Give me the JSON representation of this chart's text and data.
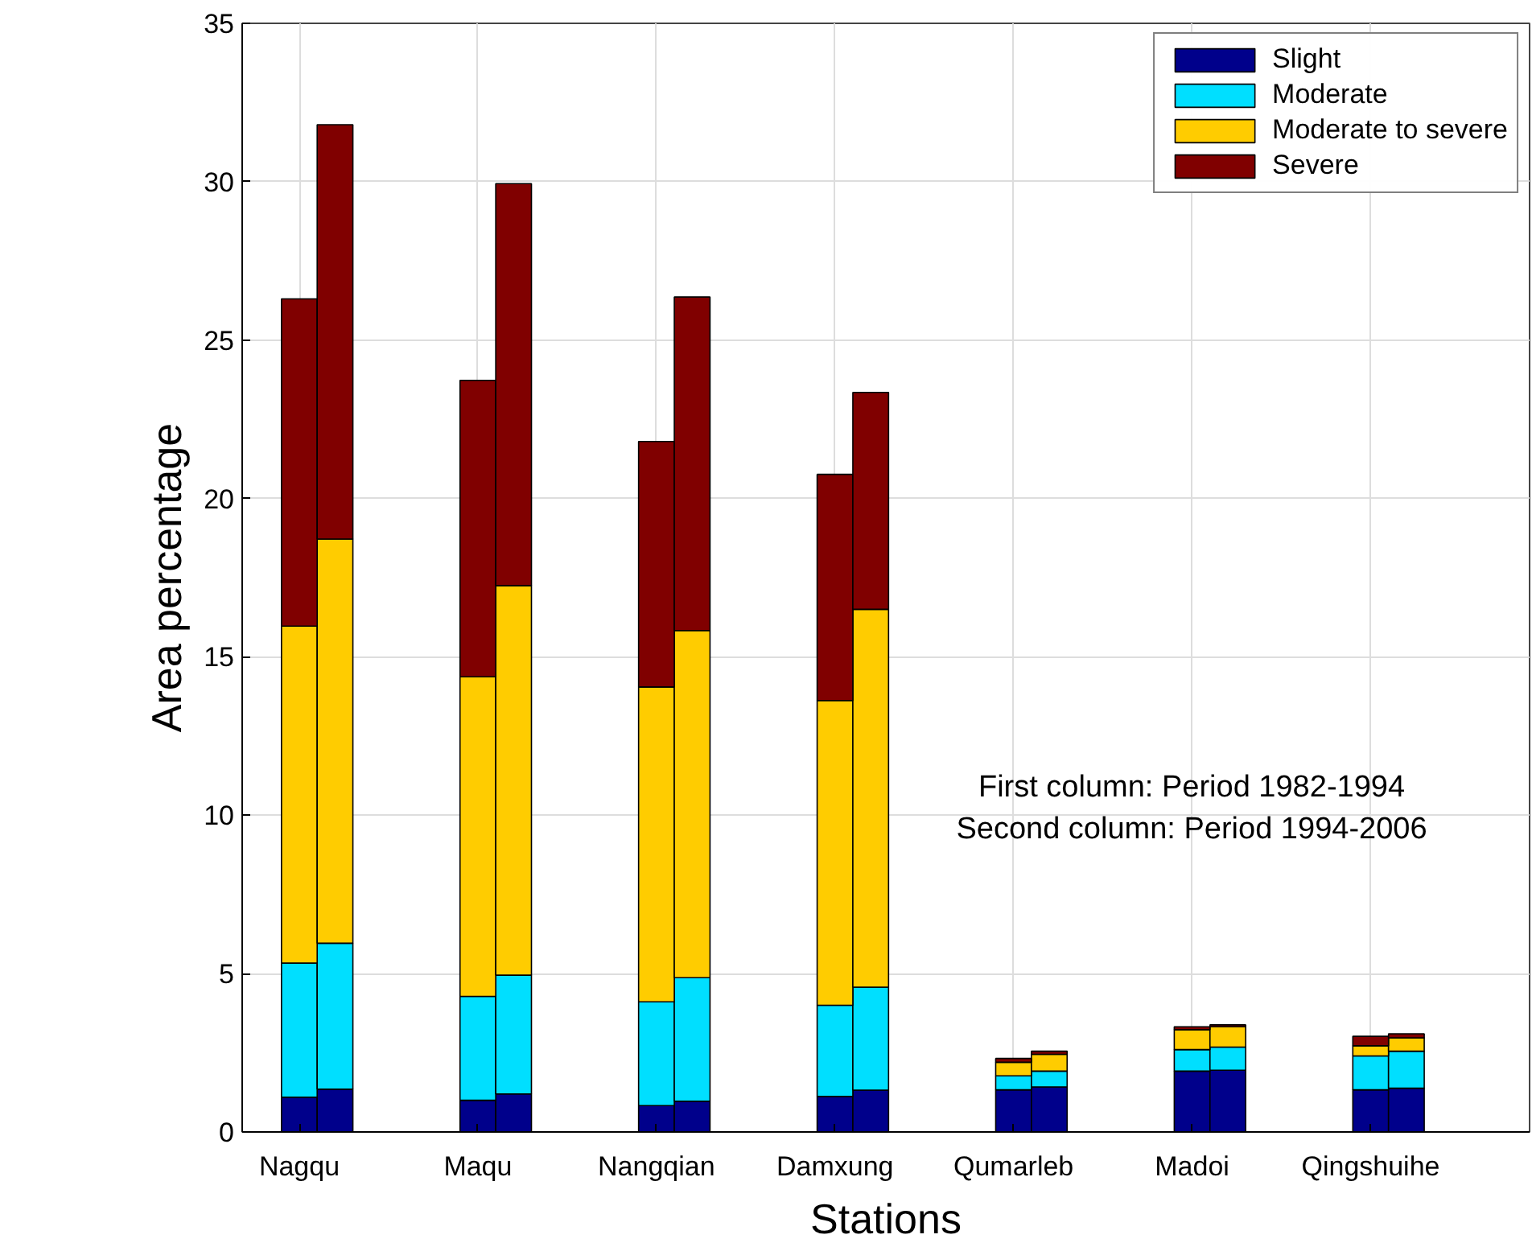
{
  "chart_data": {
    "type": "bar",
    "stacked": true,
    "xlabel": "Stations",
    "ylabel": "Area percentage",
    "categories": [
      "Nagqu",
      null,
      null,
      null,
      null,
      "Maqu",
      null,
      null,
      null,
      null,
      "Nangqian",
      null,
      null,
      null,
      null,
      "Damxung",
      null,
      null,
      null,
      null,
      "Qumarleb",
      null,
      null,
      null,
      null,
      "Madoi",
      null,
      null,
      null,
      null,
      "Qingshuihe",
      null,
      null,
      null,
      null
    ],
    "ylim": [
      0,
      35
    ],
    "yticks": [
      0,
      5,
      10,
      15,
      20,
      25,
      30,
      35
    ],
    "grid": true,
    "legend": "top right",
    "annotations": [
      "First column: Period 1982-1994",
      "Second column: Period 1994-2006"
    ],
    "series": [
      {
        "name": "Slight",
        "color": "#00008b",
        "values": [
          1.1,
          1.35,
          null,
          null,
          null,
          1.0,
          1.2,
          null,
          null,
          null,
          0.83,
          0.97,
          null,
          null,
          null,
          1.12,
          1.32,
          null,
          null,
          null,
          1.33,
          1.42,
          null,
          null,
          null,
          1.92,
          1.95,
          null,
          null,
          null,
          1.33,
          1.38,
          null,
          null,
          null
        ]
      },
      {
        "name": "Moderate",
        "color": "#00dfff",
        "values": [
          4.23,
          4.61,
          null,
          null,
          null,
          3.28,
          3.75,
          null,
          null,
          null,
          3.28,
          3.9,
          null,
          null,
          null,
          2.88,
          3.25,
          null,
          null,
          null,
          0.44,
          0.5,
          null,
          null,
          null,
          0.68,
          0.73,
          null,
          null,
          null,
          1.07,
          1.17,
          null,
          null,
          null
        ]
      },
      {
        "name": "Moderate to severe",
        "color": "#ffcc00",
        "values": [
          10.64,
          12.76,
          null,
          null,
          null,
          10.09,
          12.3,
          null,
          null,
          null,
          9.94,
          10.96,
          null,
          null,
          null,
          9.62,
          11.93,
          null,
          null,
          null,
          0.43,
          0.53,
          null,
          null,
          null,
          0.63,
          0.64,
          null,
          null,
          null,
          0.32,
          0.42,
          null,
          null,
          null
        ]
      },
      {
        "name": "Severe",
        "color": "#800000",
        "values": [
          10.33,
          13.08,
          null,
          null,
          null,
          9.36,
          12.69,
          null,
          null,
          null,
          7.75,
          10.53,
          null,
          null,
          null,
          7.14,
          6.85,
          null,
          null,
          null,
          0.12,
          0.1,
          null,
          null,
          null,
          0.09,
          0.06,
          null,
          null,
          null,
          0.3,
          0.13,
          null,
          null,
          null
        ]
      }
    ]
  }
}
